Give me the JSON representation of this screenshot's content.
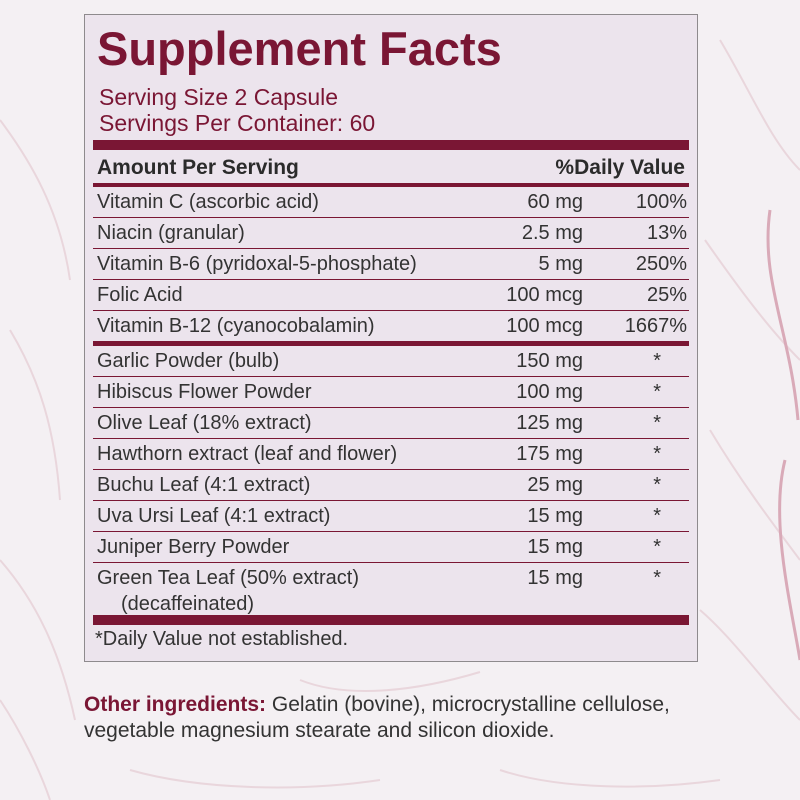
{
  "title": "Supplement Facts",
  "serving_size": "Serving Size 2 Capsule",
  "servings_per_container": "Servings Per Container: 60",
  "header": {
    "amount_per_serving": "Amount Per Serving",
    "daily_value": "%Daily Value"
  },
  "vitamins": [
    {
      "name": "Vitamin C (ascorbic acid)",
      "amount": "60 mg",
      "dv": "100%"
    },
    {
      "name": "Niacin (granular)",
      "amount": "2.5 mg",
      "dv": "13%"
    },
    {
      "name": "Vitamin B-6 (pyridoxal-5-phosphate)",
      "amount": "5 mg",
      "dv": "250%"
    },
    {
      "name": "Folic Acid",
      "amount": "100 mcg",
      "dv": "25%"
    },
    {
      "name": "Vitamin B-12 (cyanocobalamin)",
      "amount": "100 mcg",
      "dv": "1667%"
    }
  ],
  "herbals": [
    {
      "name": "Garlic Powder (bulb)",
      "amount": "150 mg",
      "dv": "*"
    },
    {
      "name": "Hibiscus Flower Powder",
      "amount": "100 mg",
      "dv": "*"
    },
    {
      "name": "Olive Leaf (18% extract)",
      "amount": "125 mg",
      "dv": "*"
    },
    {
      "name": "Hawthorn extract (leaf and flower)",
      "amount": "175 mg",
      "dv": "*"
    },
    {
      "name": "Buchu Leaf (4:1 extract)",
      "amount": "25 mg",
      "dv": "*"
    },
    {
      "name": "Uva Ursi Leaf (4:1 extract)",
      "amount": "15 mg",
      "dv": "*"
    },
    {
      "name": "Juniper Berry Powder",
      "amount": "15 mg",
      "dv": "*"
    },
    {
      "name": "Green Tea Leaf (50% extract)",
      "sub": "(decaffeinated)",
      "amount": "15 mg",
      "dv": "*"
    }
  ],
  "footnote": "*Daily Value not established.",
  "other_ingredients": {
    "label": "Other ingredients:",
    "text": "Gelatin (bovine), microcrystalline cellulose, vegetable magnesium stearate and silicon dioxide."
  },
  "colors": {
    "brand": "#7a1634",
    "panel": "#ece4ed",
    "background": "#f4f0f3"
  }
}
